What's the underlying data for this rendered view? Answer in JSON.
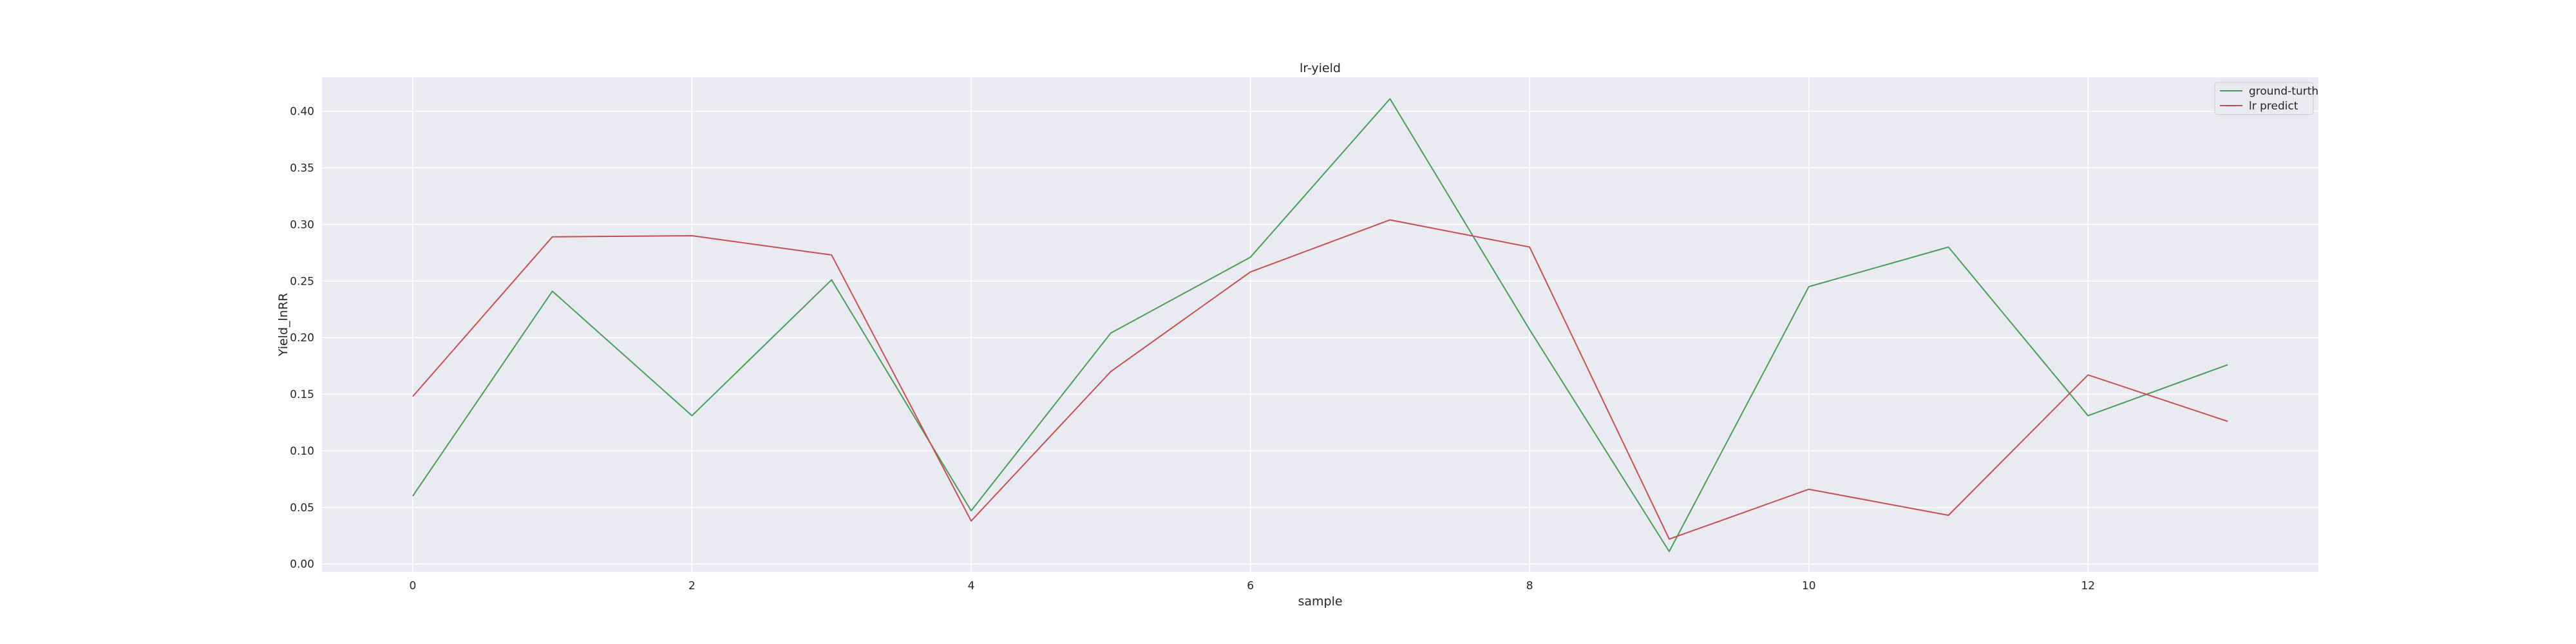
{
  "chart_data": {
    "type": "line",
    "title": "lr-yield",
    "xlabel": "sample",
    "ylabel": "Yield_lnRR",
    "xlim": [
      -0.65,
      13.65
    ],
    "ylim": [
      -0.007,
      0.43
    ],
    "xticks": [
      0,
      2,
      4,
      6,
      8,
      10,
      12
    ],
    "xtick_labels": [
      "0",
      "2",
      "4",
      "6",
      "8",
      "10",
      "12"
    ],
    "yticks": [
      0.0,
      0.05,
      0.1,
      0.15,
      0.2,
      0.25,
      0.3,
      0.35,
      0.4
    ],
    "ytick_labels": [
      "0.00",
      "0.05",
      "0.10",
      "0.15",
      "0.20",
      "0.25",
      "0.30",
      "0.35",
      "0.40"
    ],
    "grid": true,
    "legend_position": "top-right",
    "x": [
      0,
      1,
      2,
      3,
      4,
      5,
      6,
      7,
      8,
      9,
      10,
      11,
      12,
      13
    ],
    "series": [
      {
        "name": "ground-turth",
        "color": "#4c9a5b",
        "values": [
          0.06,
          0.241,
          0.131,
          0.251,
          0.047,
          0.204,
          0.271,
          0.411,
          0.207,
          0.011,
          0.245,
          0.28,
          0.131,
          0.176
        ]
      },
      {
        "name": "lr predict",
        "color": "#c44e52",
        "values": [
          0.148,
          0.289,
          0.29,
          0.273,
          0.038,
          0.17,
          0.258,
          0.304,
          0.28,
          0.022,
          0.066,
          0.043,
          0.167,
          0.126
        ]
      }
    ]
  }
}
